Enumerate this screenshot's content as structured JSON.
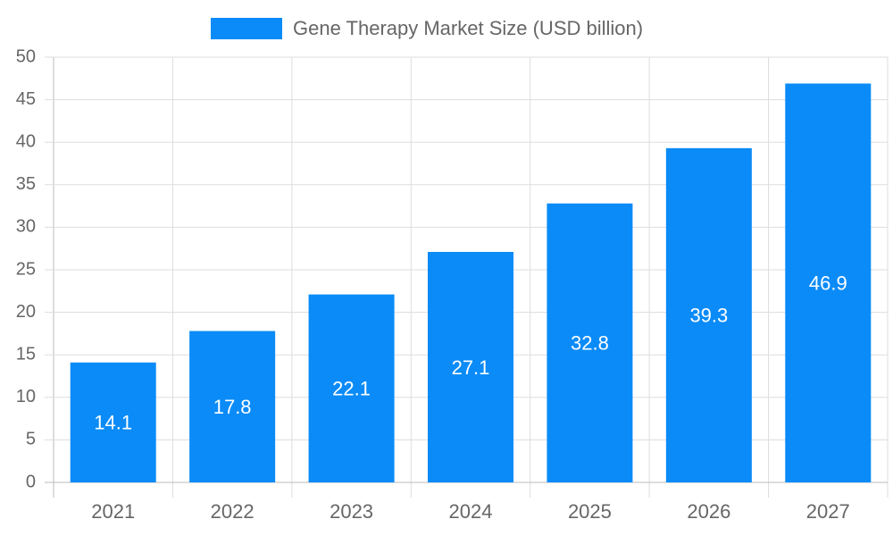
{
  "chart_data": {
    "type": "bar",
    "categories": [
      "2021",
      "2022",
      "2023",
      "2024",
      "2025",
      "2026",
      "2027"
    ],
    "series": [
      {
        "name": "Gene Therapy Market Size (USD billion)",
        "color": "#0a8bf8",
        "values": [
          14.1,
          17.8,
          22.1,
          27.1,
          32.8,
          39.3,
          46.9
        ]
      }
    ],
    "ylim": [
      0,
      50
    ],
    "yticks": [
      0,
      5,
      10,
      15,
      20,
      25,
      30,
      35,
      40,
      45,
      50
    ],
    "grid": true,
    "legend": "top"
  }
}
